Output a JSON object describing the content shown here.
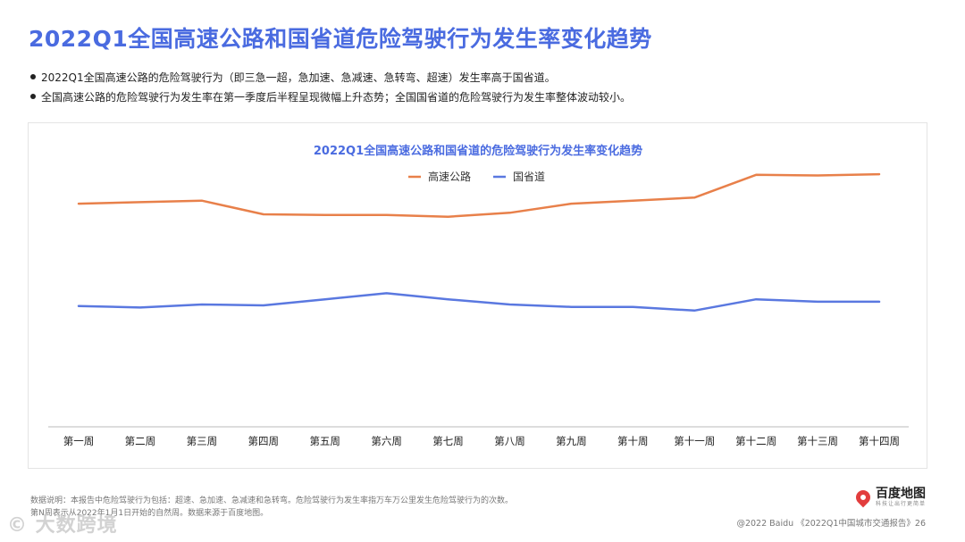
{
  "page": {
    "title": "2022Q1全国高速公路和国省道危险驾驶行为发生率变化趋势",
    "bullets": [
      "2022Q1全国高速公路的危险驾驶行为（即三急一超，急加速、急减速、急转弯、超速）发生率高于国省道。",
      "全国高速公路的危险驾驶行为发生率在第一季度后半程呈现微幅上升态势；全国国省道的危险驾驶行为发生率整体波动较小。"
    ],
    "footnote": [
      "数据说明：本报告中危险驾驶行为包括：超速、急加速、急减速和急转弯。危险驾驶行为发生率指万车万公里发生危险驾驶行为的次数。",
      "第N周表示从2022年1月1日开始的自然周。数据来源于百度地图。"
    ],
    "logo": {
      "name": "百度地图",
      "sub": "科技让出行更简单"
    },
    "copyright": "@2022 Baidu 《2022Q1中国城市交通报告》26",
    "watermark": "© 大数跨境"
  },
  "colors": {
    "accent": "#4a6be0",
    "highway": "#e8804a",
    "national": "#5a78e0"
  },
  "chart_data": {
    "type": "line",
    "title": "2022Q1全国高速公路和国省道的危险驾驶行为发生率变化趋势",
    "legend_position": "top-center",
    "grid": false,
    "y_axis_visible": false,
    "categories": [
      "第一周",
      "第二周",
      "第三周",
      "第四周",
      "第五周",
      "第六周",
      "第七周",
      "第八周",
      "第九周",
      "第十周",
      "第十一周",
      "第十二周",
      "第十三周",
      "第十四周"
    ],
    "ylim": [
      0,
      100
    ],
    "series": [
      {
        "name": "高速公路",
        "color": "#e8804a",
        "values": [
          73.5,
          74.0,
          74.5,
          70.0,
          69.8,
          69.8,
          69.2,
          70.5,
          73.5,
          74.5,
          75.5,
          83.0,
          82.8,
          83.2
        ]
      },
      {
        "name": "国省道",
        "color": "#5a78e0",
        "values": [
          39.8,
          39.3,
          40.3,
          40.0,
          42.0,
          44.0,
          42.0,
          40.3,
          39.5,
          39.5,
          38.3,
          42.0,
          41.2,
          41.2
        ]
      }
    ]
  }
}
